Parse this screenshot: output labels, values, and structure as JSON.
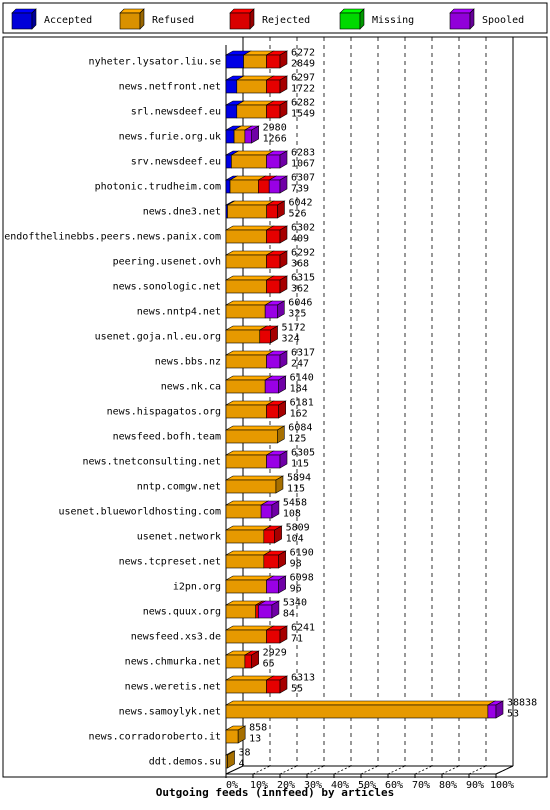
{
  "chart_data": {
    "type": "bar",
    "orientation": "horizontal",
    "stacked": true,
    "title": "Outgoing feeds (innfeed) by articles",
    "x_ticks": [
      "0%",
      "10%",
      "20%",
      "30%",
      "40%",
      "50%",
      "60%",
      "70%",
      "80%",
      "90%",
      "100%"
    ],
    "legend": [
      {
        "name": "Accepted",
        "color": "#0000ff"
      },
      {
        "name": "Refused",
        "color": "#ffaa00"
      },
      {
        "name": "Rejected",
        "color": "#ff0000"
      },
      {
        "name": "Missing",
        "color": "#00ff00"
      },
      {
        "name": "Spooled",
        "color": "#aa00ff"
      }
    ],
    "legend_placement": "top",
    "rows": [
      {
        "label": "nyheter.lysator.liu.se",
        "offered": "6272",
        "spooled_count": "2849",
        "total": 6272,
        "segments": [
          [
            "Accepted",
            0.065
          ],
          [
            "Refused",
            0.085
          ],
          [
            "Rejected",
            0.05
          ]
        ]
      },
      {
        "label": "news.netfront.net",
        "offered": "6297",
        "spooled_count": "1722",
        "total": 6297,
        "segments": [
          [
            "Accepted",
            0.04
          ],
          [
            "Refused",
            0.11
          ],
          [
            "Rejected",
            0.05
          ]
        ]
      },
      {
        "label": "srl.newsdeef.eu",
        "offered": "6282",
        "spooled_count": "1549",
        "total": 6282,
        "segments": [
          [
            "Accepted",
            0.04
          ],
          [
            "Refused",
            0.11
          ],
          [
            "Rejected",
            0.05
          ]
        ]
      },
      {
        "label": "news.furie.org.uk",
        "offered": "2980",
        "spooled_count": "1266",
        "total": 2980,
        "segments": [
          [
            "Accepted",
            0.03
          ],
          [
            "Refused",
            0.04
          ],
          [
            "Spooled",
            0.025
          ]
        ]
      },
      {
        "label": "srv.newsdeef.eu",
        "offered": "6283",
        "spooled_count": "1067",
        "total": 6283,
        "segments": [
          [
            "Accepted",
            0.02
          ],
          [
            "Refused",
            0.13
          ],
          [
            "Spooled",
            0.05
          ]
        ]
      },
      {
        "label": "photonic.trudheim.com",
        "offered": "6307",
        "spooled_count": "739",
        "total": 6307,
        "segments": [
          [
            "Accepted",
            0.015
          ],
          [
            "Refused",
            0.105
          ],
          [
            "Rejected",
            0.04
          ],
          [
            "Spooled",
            0.04
          ]
        ]
      },
      {
        "label": "news.dne3.net",
        "offered": "6042",
        "spooled_count": "526",
        "total": 6042,
        "segments": [
          [
            "Accepted",
            0.005
          ],
          [
            "Refused",
            0.145
          ],
          [
            "Rejected",
            0.04
          ]
        ]
      },
      {
        "label": "endofthelinebbs.peers.news.panix.com",
        "offered": "6302",
        "spooled_count": "409",
        "total": 6302,
        "segments": [
          [
            "Refused",
            0.15
          ],
          [
            "Rejected",
            0.05
          ]
        ]
      },
      {
        "label": "peering.usenet.ovh",
        "offered": "6292",
        "spooled_count": "368",
        "total": 6292,
        "segments": [
          [
            "Refused",
            0.15
          ],
          [
            "Rejected",
            0.05
          ]
        ]
      },
      {
        "label": "news.sonologic.net",
        "offered": "6315",
        "spooled_count": "362",
        "total": 6315,
        "segments": [
          [
            "Refused",
            0.15
          ],
          [
            "Rejected",
            0.05
          ]
        ]
      },
      {
        "label": "news.nntp4.net",
        "offered": "6046",
        "spooled_count": "325",
        "total": 6046,
        "segments": [
          [
            "Refused",
            0.145
          ],
          [
            "Spooled",
            0.045
          ]
        ]
      },
      {
        "label": "usenet.goja.nl.eu.org",
        "offered": "5172",
        "spooled_count": "324",
        "total": 5172,
        "segments": [
          [
            "Refused",
            0.125
          ],
          [
            "Rejected",
            0.04
          ]
        ]
      },
      {
        "label": "news.bbs.nz",
        "offered": "6317",
        "spooled_count": "247",
        "total": 6317,
        "segments": [
          [
            "Refused",
            0.15
          ],
          [
            "Spooled",
            0.05
          ]
        ]
      },
      {
        "label": "news.nk.ca",
        "offered": "6140",
        "spooled_count": "184",
        "total": 6140,
        "segments": [
          [
            "Refused",
            0.145
          ],
          [
            "Spooled",
            0.05
          ]
        ]
      },
      {
        "label": "news.hispagatos.org",
        "offered": "6181",
        "spooled_count": "162",
        "total": 6181,
        "segments": [
          [
            "Refused",
            0.15
          ],
          [
            "Rejected",
            0.045
          ]
        ]
      },
      {
        "label": "newsfeed.bofh.team",
        "offered": "6084",
        "spooled_count": "125",
        "total": 6084,
        "segments": [
          [
            "Refused",
            0.19
          ]
        ]
      },
      {
        "label": "news.tnetconsulting.net",
        "offered": "6305",
        "spooled_count": "115",
        "total": 6305,
        "segments": [
          [
            "Refused",
            0.15
          ],
          [
            "Spooled",
            0.05
          ]
        ]
      },
      {
        "label": "nntp.comgw.net",
        "offered": "5894",
        "spooled_count": "115",
        "total": 5894,
        "segments": [
          [
            "Refused",
            0.185
          ]
        ]
      },
      {
        "label": "usenet.blueworldhosting.com",
        "offered": "5458",
        "spooled_count": "108",
        "total": 5458,
        "segments": [
          [
            "Refused",
            0.13
          ],
          [
            "Spooled",
            0.04
          ]
        ]
      },
      {
        "label": "usenet.network",
        "offered": "5809",
        "spooled_count": "104",
        "total": 5809,
        "segments": [
          [
            "Refused",
            0.14
          ],
          [
            "Rejected",
            0.04
          ]
        ]
      },
      {
        "label": "news.tcpreset.net",
        "offered": "6190",
        "spooled_count": "98",
        "total": 6190,
        "segments": [
          [
            "Refused",
            0.14
          ],
          [
            "Rejected",
            0.055
          ]
        ]
      },
      {
        "label": "i2pn.org",
        "offered": "6098",
        "spooled_count": "96",
        "total": 6098,
        "segments": [
          [
            "Refused",
            0.15
          ],
          [
            "Spooled",
            0.045
          ]
        ]
      },
      {
        "label": "news.quux.org",
        "offered": "5340",
        "spooled_count": "84",
        "total": 5340,
        "segments": [
          [
            "Refused",
            0.11
          ],
          [
            "Rejected",
            0.01
          ],
          [
            "Spooled",
            0.05
          ]
        ]
      },
      {
        "label": "newsfeed.xs3.de",
        "offered": "6241",
        "spooled_count": "71",
        "total": 6241,
        "segments": [
          [
            "Refused",
            0.15
          ],
          [
            "Rejected",
            0.05
          ]
        ]
      },
      {
        "label": "news.chmurka.net",
        "offered": "2929",
        "spooled_count": "65",
        "total": 2929,
        "segments": [
          [
            "Refused",
            0.07
          ],
          [
            "Rejected",
            0.025
          ]
        ]
      },
      {
        "label": "news.weretis.net",
        "offered": "6313",
        "spooled_count": "55",
        "total": 6313,
        "segments": [
          [
            "Refused",
            0.15
          ],
          [
            "Rejected",
            0.05
          ]
        ]
      },
      {
        "label": "news.samoylyk.net",
        "offered": "38838",
        "spooled_count": "53",
        "total": 38838,
        "segments": [
          [
            "Refused",
            0.97
          ],
          [
            "Spooled",
            0.03
          ]
        ]
      },
      {
        "label": "news.corradoroberto.it",
        "offered": "858",
        "spooled_count": "13",
        "total": 858,
        "segments": [
          [
            "Refused",
            0.045
          ]
        ]
      },
      {
        "label": "ddt.demos.su",
        "offered": "38",
        "spooled_count": "4",
        "total": 38,
        "segments": [
          [
            "Refused",
            0.003
          ]
        ]
      }
    ]
  }
}
